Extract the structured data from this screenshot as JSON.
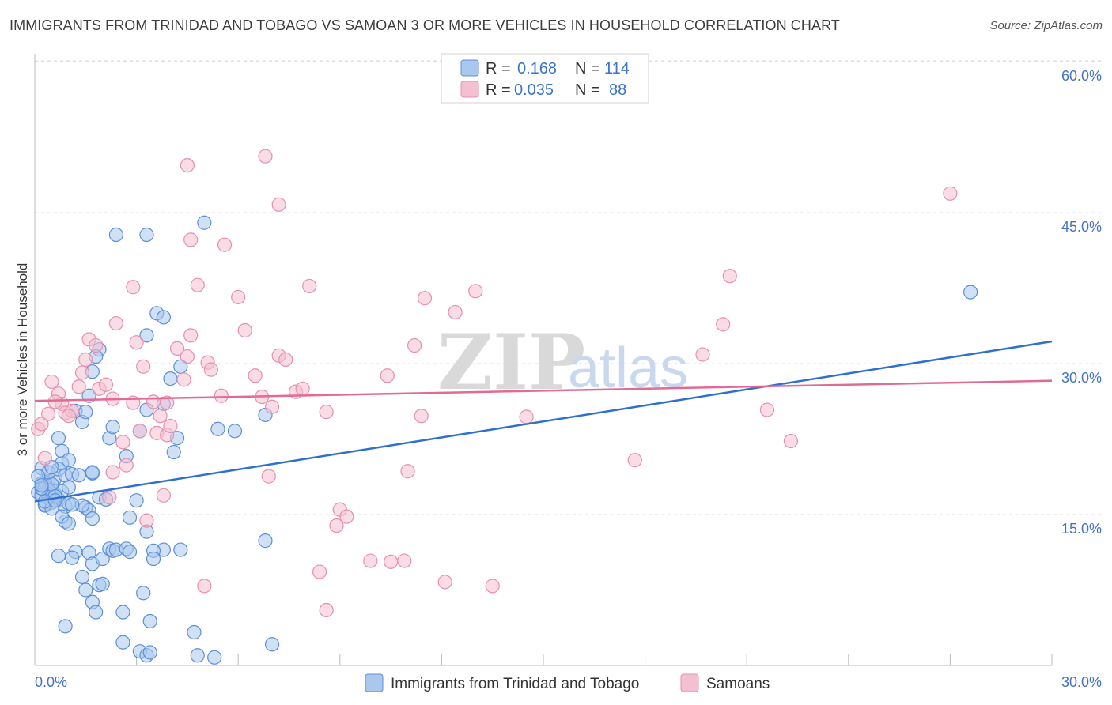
{
  "title": "IMMIGRANTS FROM TRINIDAD AND TOBAGO VS SAMOAN 3 OR MORE VEHICLES IN HOUSEHOLD CORRELATION CHART",
  "source": "Source: ZipAtlas.com",
  "watermark": {
    "part1": "ZIP",
    "part2": "atlas"
  },
  "colors": {
    "blue_fill": "#aac8ee",
    "blue_stroke": "#5d8fd6",
    "blue_line": "#2f6fcf",
    "pink_fill": "#f4bfd0",
    "pink_stroke": "#e690ad",
    "pink_line": "#e36a92",
    "tick_text": "#4472c4",
    "grid": "#dddddd"
  },
  "legend": {
    "r_label": "R =",
    "n_label": "N =",
    "entries": [
      {
        "r": "0.168",
        "n": "114"
      },
      {
        "r": "0.035",
        "n": "88"
      }
    ]
  },
  "chart_data": {
    "type": "scatter",
    "title": "IMMIGRANTS FROM TRINIDAD AND TOBAGO VS SAMOAN 3 OR MORE VEHICLES IN HOUSEHOLD CORRELATION CHART",
    "xlabel": "",
    "ylabel": "3 or more Vehicles in Household",
    "xlim": [
      0,
      30
    ],
    "ylim": [
      0,
      60
    ],
    "x_tick_labels": [
      "0.0%",
      "30.0%"
    ],
    "y_ticks": [
      15,
      30,
      45,
      60
    ],
    "y_tick_labels": [
      "15.0%",
      "30.0%",
      "45.0%",
      "60.0%"
    ],
    "grid": true,
    "series": [
      {
        "name": "Immigrants from Trinidad and Tobago",
        "color": "blue",
        "r": 0.168,
        "n": 114,
        "trend": {
          "x": [
            0,
            30
          ],
          "y": [
            16.3,
            32.2
          ]
        },
        "points": [
          [
            0.1,
            17.2
          ],
          [
            0.2,
            18.1
          ],
          [
            0.2,
            16.9
          ],
          [
            0.3,
            17.8
          ],
          [
            0.3,
            15.9
          ],
          [
            0.4,
            16.6
          ],
          [
            0.4,
            18.3
          ],
          [
            0.5,
            17.5
          ],
          [
            0.5,
            16.2
          ],
          [
            0.6,
            17.0
          ],
          [
            0.6,
            18.6
          ],
          [
            0.7,
            16.5
          ],
          [
            0.7,
            19.5
          ],
          [
            0.8,
            17.3
          ],
          [
            0.8,
            20.1
          ],
          [
            0.9,
            15.8
          ],
          [
            0.9,
            18.9
          ],
          [
            1.0,
            17.7
          ],
          [
            1.0,
            16.1
          ],
          [
            1.1,
            19.0
          ],
          [
            0.2,
            19.6
          ],
          [
            0.3,
            18.2
          ],
          [
            0.4,
            17.4
          ],
          [
            0.5,
            18.0
          ],
          [
            0.6,
            16.8
          ],
          [
            0.3,
            16.0
          ],
          [
            0.5,
            15.6
          ],
          [
            0.2,
            17.6
          ],
          [
            0.4,
            19.2
          ],
          [
            0.1,
            18.8
          ],
          [
            0.7,
            22.6
          ],
          [
            0.8,
            21.3
          ],
          [
            1.0,
            20.4
          ],
          [
            1.2,
            25.3
          ],
          [
            1.4,
            24.2
          ],
          [
            1.5,
            25.2
          ],
          [
            1.6,
            26.8
          ],
          [
            1.7,
            29.2
          ],
          [
            1.9,
            31.4
          ],
          [
            1.8,
            30.7
          ],
          [
            1.3,
            18.9
          ],
          [
            1.5,
            15.7
          ],
          [
            1.6,
            15.4
          ],
          [
            1.7,
            14.6
          ],
          [
            1.4,
            15.9
          ],
          [
            1.9,
            16.7
          ],
          [
            2.1,
            16.5
          ],
          [
            1.7,
            19.1
          ],
          [
            1.7,
            19.2
          ],
          [
            0.9,
            14.3
          ],
          [
            0.8,
            14.8
          ],
          [
            1.0,
            14.1
          ],
          [
            1.2,
            11.3
          ],
          [
            0.7,
            10.9
          ],
          [
            1.1,
            10.7
          ],
          [
            1.6,
            11.2
          ],
          [
            1.7,
            10.1
          ],
          [
            2.0,
            10.6
          ],
          [
            2.2,
            11.6
          ],
          [
            2.3,
            11.4
          ],
          [
            2.4,
            11.5
          ],
          [
            2.7,
            11.6
          ],
          [
            2.8,
            11.3
          ],
          [
            1.4,
            8.8
          ],
          [
            1.5,
            7.5
          ],
          [
            1.9,
            8.0
          ],
          [
            2.0,
            8.1
          ],
          [
            1.7,
            6.3
          ],
          [
            1.8,
            5.3
          ],
          [
            0.9,
            3.9
          ],
          [
            2.6,
            5.3
          ],
          [
            3.2,
            7.2
          ],
          [
            3.4,
            4.4
          ],
          [
            2.6,
            2.3
          ],
          [
            3.1,
            1.4
          ],
          [
            3.3,
            1.0
          ],
          [
            3.4,
            1.3
          ],
          [
            4.7,
            3.3
          ],
          [
            4.8,
            1.0
          ],
          [
            5.3,
            0.8
          ],
          [
            7.0,
            2.1
          ],
          [
            6.8,
            12.4
          ],
          [
            3.0,
            16.4
          ],
          [
            2.8,
            14.7
          ],
          [
            3.3,
            13.3
          ],
          [
            3.8,
            11.5
          ],
          [
            4.3,
            11.5
          ],
          [
            3.5,
            11.4
          ],
          [
            3.5,
            10.6
          ],
          [
            2.2,
            22.6
          ],
          [
            2.7,
            20.8
          ],
          [
            2.3,
            23.7
          ],
          [
            3.1,
            23.3
          ],
          [
            3.8,
            26.0
          ],
          [
            3.3,
            25.4
          ],
          [
            4.0,
            28.5
          ],
          [
            4.1,
            21.2
          ],
          [
            4.3,
            29.7
          ],
          [
            4.2,
            22.6
          ],
          [
            3.3,
            32.8
          ],
          [
            3.6,
            35.0
          ],
          [
            3.8,
            34.6
          ],
          [
            5.0,
            44.0
          ],
          [
            2.4,
            42.8
          ],
          [
            3.3,
            42.8
          ],
          [
            5.4,
            23.5
          ],
          [
            5.9,
            23.3
          ],
          [
            6.8,
            24.9
          ],
          [
            27.6,
            37.1
          ],
          [
            0.3,
            16.3
          ],
          [
            0.2,
            17.9
          ],
          [
            0.6,
            16.4
          ],
          [
            0.5,
            19.7
          ],
          [
            1.1,
            16.0
          ]
        ]
      },
      {
        "name": "Samoans",
        "color": "pink",
        "r": 0.035,
        "n": 88,
        "trend": {
          "x": [
            0,
            30
          ],
          "y": [
            26.3,
            28.3
          ]
        },
        "points": [
          [
            0.1,
            23.5
          ],
          [
            0.2,
            24.0
          ],
          [
            0.4,
            25.0
          ],
          [
            0.3,
            20.6
          ],
          [
            0.5,
            28.2
          ],
          [
            0.7,
            27.0
          ],
          [
            0.8,
            26.0
          ],
          [
            0.9,
            25.1
          ],
          [
            1.1,
            25.3
          ],
          [
            1.0,
            24.8
          ],
          [
            1.3,
            27.7
          ],
          [
            1.4,
            29.1
          ],
          [
            1.5,
            30.4
          ],
          [
            1.6,
            32.4
          ],
          [
            1.8,
            31.8
          ],
          [
            1.9,
            27.5
          ],
          [
            2.1,
            27.9
          ],
          [
            2.3,
            26.5
          ],
          [
            2.4,
            34.0
          ],
          [
            2.6,
            22.2
          ],
          [
            2.9,
            26.1
          ],
          [
            3.0,
            32.1
          ],
          [
            3.2,
            29.7
          ],
          [
            3.5,
            26.2
          ],
          [
            3.7,
            24.8
          ],
          [
            3.9,
            26.1
          ],
          [
            4.2,
            31.5
          ],
          [
            4.4,
            28.4
          ],
          [
            4.5,
            30.7
          ],
          [
            4.6,
            32.8
          ],
          [
            4.8,
            37.8
          ],
          [
            5.1,
            30.1
          ],
          [
            5.2,
            29.4
          ],
          [
            5.5,
            26.8
          ],
          [
            5.6,
            41.8
          ],
          [
            6.0,
            36.6
          ],
          [
            6.2,
            33.3
          ],
          [
            6.5,
            28.8
          ],
          [
            6.7,
            26.7
          ],
          [
            7.0,
            25.7
          ],
          [
            7.2,
            30.8
          ],
          [
            7.4,
            30.4
          ],
          [
            7.7,
            27.2
          ],
          [
            7.9,
            27.5
          ],
          [
            8.1,
            37.7
          ],
          [
            8.6,
            25.2
          ],
          [
            8.4,
            9.3
          ],
          [
            8.6,
            5.5
          ],
          [
            8.9,
            13.9
          ],
          [
            9.0,
            15.5
          ],
          [
            9.2,
            14.8
          ],
          [
            9.9,
            10.4
          ],
          [
            10.4,
            28.8
          ],
          [
            10.5,
            10.3
          ],
          [
            10.9,
            10.4
          ],
          [
            11.0,
            19.3
          ],
          [
            11.2,
            31.8
          ],
          [
            11.4,
            24.8
          ],
          [
            11.5,
            36.5
          ],
          [
            12.1,
            8.3
          ],
          [
            12.4,
            35.1
          ],
          [
            13.0,
            37.2
          ],
          [
            13.5,
            7.9
          ],
          [
            14.5,
            24.7
          ],
          [
            17.7,
            20.4
          ],
          [
            19.7,
            30.9
          ],
          [
            20.3,
            33.9
          ],
          [
            20.5,
            38.7
          ],
          [
            21.6,
            25.4
          ],
          [
            22.3,
            22.3
          ],
          [
            27.0,
            46.9
          ],
          [
            6.8,
            50.6
          ],
          [
            4.5,
            49.7
          ],
          [
            7.2,
            45.8
          ],
          [
            4.6,
            42.3
          ],
          [
            2.9,
            37.6
          ],
          [
            2.3,
            19.2
          ],
          [
            2.2,
            16.7
          ],
          [
            2.7,
            19.9
          ],
          [
            3.3,
            14.4
          ],
          [
            3.6,
            23.1
          ],
          [
            3.9,
            22.9
          ],
          [
            3.8,
            16.9
          ],
          [
            4.0,
            23.8
          ],
          [
            5.0,
            7.9
          ],
          [
            6.9,
            18.8
          ],
          [
            0.6,
            26.2
          ],
          [
            3.1,
            23.3
          ]
        ]
      }
    ]
  },
  "bottom_legend": {
    "series1": "Immigrants from Trinidad and Tobago",
    "series2": "Samoans"
  }
}
